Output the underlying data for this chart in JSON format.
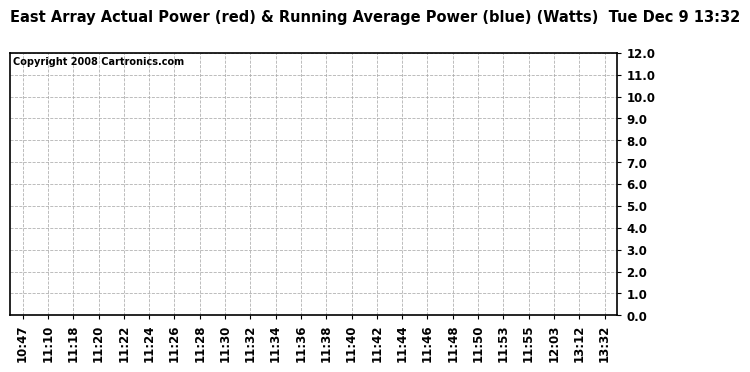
{
  "title": "East Array Actual Power (red) & Running Average Power (blue) (Watts)  Tue Dec 9 13:32",
  "copyright_text": "Copyright 2008 Cartronics.com",
  "x_labels": [
    "10:47",
    "11:10",
    "11:18",
    "11:20",
    "11:22",
    "11:24",
    "11:26",
    "11:28",
    "11:30",
    "11:32",
    "11:34",
    "11:36",
    "11:38",
    "11:40",
    "11:42",
    "11:44",
    "11:46",
    "11:48",
    "11:50",
    "11:53",
    "11:55",
    "12:03",
    "13:12",
    "13:32"
  ],
  "y_min": 0.0,
  "y_max": 12.0,
  "y_ticks": [
    0.0,
    1.0,
    2.0,
    3.0,
    4.0,
    5.0,
    6.0,
    7.0,
    8.0,
    9.0,
    10.0,
    11.0,
    12.0
  ],
  "bg_color": "#ffffff",
  "plot_bg_color": "#ffffff",
  "grid_color": "#aaaaaa",
  "title_fontsize": 10.5,
  "copyright_fontsize": 7,
  "tick_fontsize": 8.5,
  "border_color": "#000000",
  "title_font": "DejaVu Sans",
  "tick_font": "DejaVu Sans"
}
